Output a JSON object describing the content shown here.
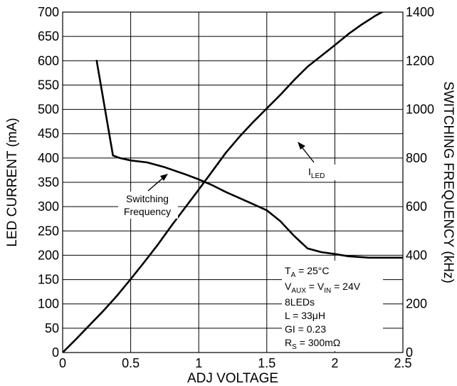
{
  "chart_data": {
    "type": "line",
    "xlabel": "ADJ VOLTAGE",
    "ylabel": "LED CURRENT (mA)",
    "y2label": "SWITCHING FREQUENCY (kHz)",
    "xlim": [
      0,
      2.5
    ],
    "ylim": [
      0,
      700
    ],
    "y2lim": [
      0,
      1400
    ],
    "grid": true,
    "x_ticks": [
      "0",
      "0.5",
      "1",
      "1.5",
      "2",
      "2.5"
    ],
    "y_ticks": [
      "0",
      "50",
      "100",
      "150",
      "200",
      "250",
      "300",
      "350",
      "400",
      "450",
      "500",
      "550",
      "600",
      "650",
      "700"
    ],
    "y2_ticks": [
      "0",
      "200",
      "400",
      "600",
      "800",
      "1000",
      "1200",
      "1400"
    ],
    "series": [
      {
        "axis": "left",
        "x": [
          0,
          0.1,
          0.2,
          0.3,
          0.4,
          0.5,
          0.6,
          0.7,
          0.8,
          0.9,
          1.0,
          1.1,
          1.2,
          1.3,
          1.4,
          1.5,
          1.6,
          1.7,
          1.8,
          1.9,
          2.0,
          2.1,
          2.2,
          2.3,
          2.4,
          2.5
        ],
        "y": [
          0,
          28,
          57,
          86,
          117,
          151,
          186,
          222,
          261,
          298,
          335,
          373,
          411,
          444,
          474,
          502,
          530,
          560,
          588,
          610,
          632,
          655,
          675,
          693,
          708,
          718
        ]
      },
      {
        "axis": "right",
        "x": [
          0.25,
          0.37,
          0.42,
          0.5,
          0.62,
          0.75,
          0.9,
          1.0,
          1.1,
          1.2,
          1.3,
          1.4,
          1.5,
          1.6,
          1.7,
          1.8,
          1.9,
          2.0,
          2.1,
          2.25,
          2.5
        ],
        "y": [
          1200,
          810,
          800,
          790,
          782,
          762,
          733,
          712,
          688,
          660,
          635,
          610,
          585,
          540,
          480,
          428,
          413,
          405,
          396,
          390,
          390
        ]
      }
    ],
    "annotations": {
      "iled_main": "I",
      "iled_sub": "LED",
      "sw_line1": "Switching",
      "sw_line2": "Frequency",
      "cond": {
        "ta_main": "T",
        "ta_sub": "A",
        "ta_rest": " = 25°C",
        "vaux_main": "V",
        "vaux_sub": "AUX",
        "vaux_mid": " = V",
        "vin_sub": "IN",
        "vaux_rest": " = 24V",
        "leds": "8LEDs",
        "inductor": "L = 33μH",
        "gi": "GI = 0.23",
        "rs_main": "R",
        "rs_sub": "S",
        "rs_rest": " = 300mΩ"
      }
    }
  }
}
